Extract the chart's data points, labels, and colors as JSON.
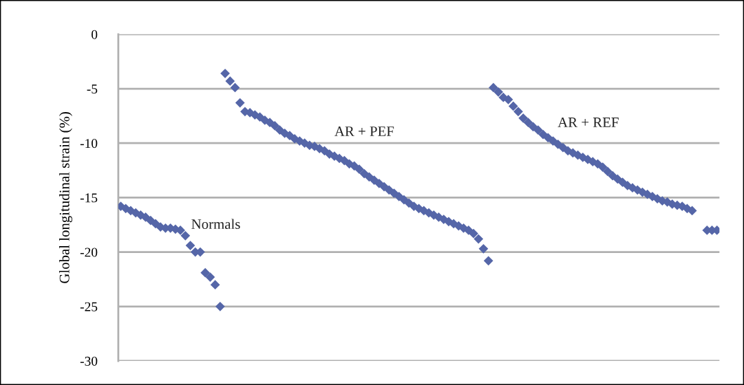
{
  "chart_data": {
    "type": "scatter",
    "ylabel": "Global longitudinal strain (%)",
    "categories": [
      null,
      null,
      null,
      null,
      null,
      null,
      null,
      null,
      null,
      null,
      null,
      null,
      null,
      null,
      null,
      null,
      null,
      null,
      null,
      null,
      null,
      null,
      null,
      null,
      null,
      null,
      null,
      null,
      null,
      null,
      null,
      null,
      null,
      null,
      null,
      null,
      null,
      null,
      null,
      null,
      null,
      null,
      null,
      null,
      null,
      null,
      null,
      null,
      null,
      null,
      null,
      null,
      null,
      null,
      null,
      null,
      null,
      null,
      null,
      null,
      null,
      null,
      null,
      null,
      null,
      null,
      null,
      null,
      null,
      null,
      null,
      null,
      null,
      null,
      null,
      null,
      null,
      null,
      null,
      null,
      null,
      null,
      null,
      null,
      null,
      null,
      null,
      null,
      null,
      null,
      null,
      null,
      null,
      null,
      null,
      null,
      null,
      null,
      null,
      null,
      null,
      null,
      null,
      null,
      null,
      null,
      null,
      null,
      null,
      null,
      null,
      null,
      null,
      null,
      null,
      null,
      null,
      null,
      null,
      null,
      null
    ],
    "series": [
      {
        "name": "Normals",
        "color": "#5566a8",
        "values": [
          -15.8,
          -16.0,
          -16.2,
          -16.4,
          -16.6,
          -16.8,
          -17.1,
          -17.4,
          -17.7,
          -17.8,
          -17.8,
          -17.9,
          -18.0,
          -18.5,
          -19.4,
          -20.0,
          -20.0,
          -21.9,
          -22.3,
          -23.0,
          -25.0,
          null,
          null,
          null,
          null,
          null,
          null,
          null,
          null,
          null,
          null,
          null,
          null,
          null,
          null,
          null,
          null,
          null,
          null,
          null,
          null,
          null,
          null,
          null,
          null,
          null,
          null,
          null,
          null,
          null,
          null,
          null,
          null,
          null,
          null,
          null,
          null,
          null,
          null,
          null,
          null,
          null,
          null,
          null,
          null,
          null,
          null,
          null,
          null,
          null,
          null,
          null,
          null,
          null,
          null,
          null,
          null,
          null,
          null,
          null,
          null,
          null,
          null,
          null,
          null,
          null,
          null,
          null,
          null,
          null,
          null,
          null,
          null,
          null,
          null,
          null,
          null,
          null,
          null,
          null,
          null,
          null,
          null,
          null,
          null,
          null,
          null,
          null,
          null,
          null,
          null,
          null,
          null,
          null,
          null,
          null,
          null,
          null,
          null,
          null,
          null
        ]
      },
      {
        "name": "AR + PEF",
        "color": "#5566a8",
        "values": [
          null,
          null,
          null,
          null,
          null,
          null,
          null,
          null,
          null,
          null,
          null,
          null,
          null,
          null,
          null,
          null,
          null,
          null,
          null,
          null,
          null,
          -3.6,
          -4.3,
          -4.9,
          -6.3,
          -7.1,
          -7.2,
          -7.4,
          -7.6,
          -7.9,
          -8.1,
          -8.4,
          -8.8,
          -9.1,
          -9.3,
          -9.6,
          -9.8,
          -10.0,
          -10.2,
          -10.3,
          -10.5,
          -10.7,
          -11.0,
          -11.2,
          -11.4,
          -11.6,
          -11.9,
          -12.1,
          -12.4,
          -12.8,
          -13.1,
          -13.4,
          -13.7,
          -14.0,
          -14.3,
          -14.6,
          -14.9,
          -15.2,
          -15.5,
          -15.8,
          -16.0,
          -16.2,
          -16.4,
          -16.6,
          -16.8,
          -17.0,
          -17.2,
          -17.4,
          -17.6,
          -17.8,
          -18.0,
          -18.3,
          -18.8,
          -19.7,
          -20.8,
          null,
          null,
          null,
          null,
          null,
          null,
          null,
          null,
          null,
          null,
          null,
          null,
          null,
          null,
          null,
          null,
          null,
          null,
          null,
          null,
          null,
          null,
          null,
          null,
          null,
          null,
          null,
          null,
          null,
          null,
          null,
          null,
          null,
          null,
          null,
          null,
          null,
          null,
          null,
          null,
          null,
          null,
          null,
          null,
          null,
          null
        ]
      },
      {
        "name": "AR + REF",
        "color": "#5566a8",
        "values": [
          null,
          null,
          null,
          null,
          null,
          null,
          null,
          null,
          null,
          null,
          null,
          null,
          null,
          null,
          null,
          null,
          null,
          null,
          null,
          null,
          null,
          null,
          null,
          null,
          null,
          null,
          null,
          null,
          null,
          null,
          null,
          null,
          null,
          null,
          null,
          null,
          null,
          null,
          null,
          null,
          null,
          null,
          null,
          null,
          null,
          null,
          null,
          null,
          null,
          null,
          null,
          null,
          null,
          null,
          null,
          null,
          null,
          null,
          null,
          null,
          null,
          null,
          null,
          null,
          null,
          null,
          null,
          null,
          null,
          null,
          null,
          null,
          null,
          null,
          null,
          -4.9,
          -5.3,
          -5.8,
          -6.0,
          -6.6,
          -7.1,
          -7.7,
          -8.1,
          -8.5,
          -8.8,
          -9.2,
          -9.5,
          -9.8,
          -10.1,
          -10.4,
          -10.7,
          -10.9,
          -11.1,
          -11.3,
          -11.5,
          -11.7,
          -11.9,
          -12.2,
          -12.6,
          -13.0,
          -13.3,
          -13.6,
          -13.9,
          -14.1,
          -14.3,
          -14.5,
          -14.7,
          -14.9,
          -15.1,
          -15.3,
          -15.4,
          -15.6,
          -15.7,
          -15.8,
          -16.0,
          -16.2,
          null,
          null,
          -18.0,
          -18.0,
          -18.0
        ]
      }
    ],
    "ylim": [
      -30,
      0
    ],
    "yticks": [
      -30,
      -25,
      -20,
      -15,
      -10,
      -5,
      0
    ],
    "grid": "y",
    "marker": "diamond",
    "tick_labels": "y",
    "legend": false
  }
}
